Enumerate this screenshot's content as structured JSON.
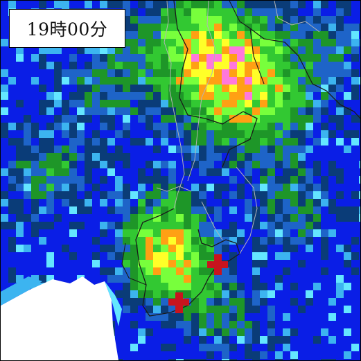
{
  "time_label": "19時00分",
  "colors": {
    "deep_blue": "#0a1ee6",
    "navy": "#0a3c78",
    "mid_blue": "#1e64c8",
    "light_blue": "#3cb4f0",
    "cyan": "#64e6ff",
    "dark_green": "#1e9628",
    "green": "#32c832",
    "light_green": "#78ff3c",
    "yellow": "#ffff28",
    "orange": "#ffa014",
    "pink": "#ff78dc",
    "cloud_white": "#ffffff",
    "boundary_line": "#1a1a1a",
    "marker_red": "#c8141e"
  },
  "markers": [
    {
      "name": "observation-point-1",
      "icon": "red-cross-marker"
    },
    {
      "name": "observation-point-2",
      "icon": "red-cross-marker"
    }
  ]
}
